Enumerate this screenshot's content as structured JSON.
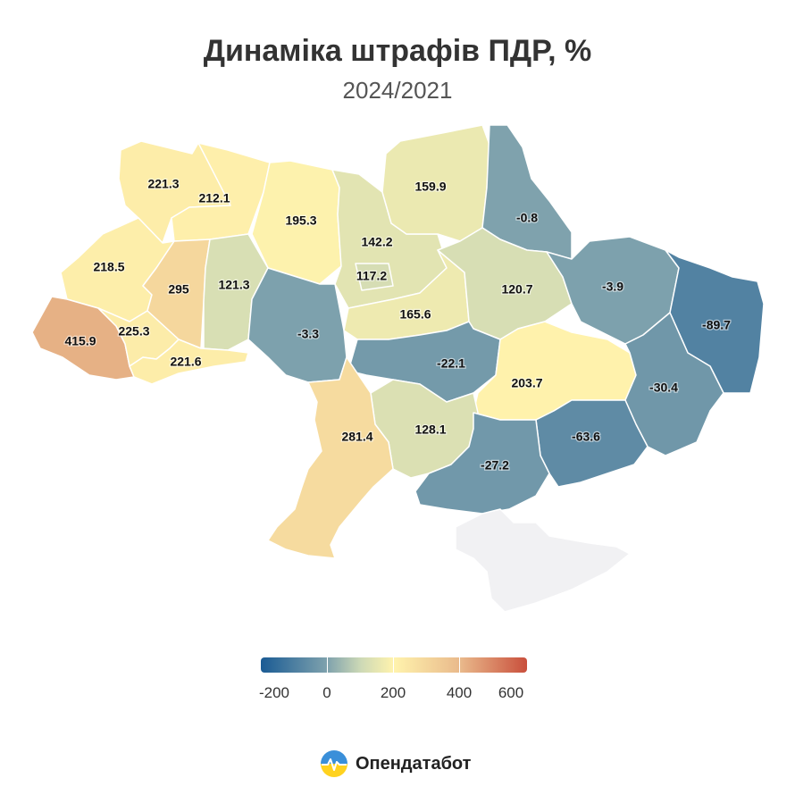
{
  "title": "Динаміка штрафів ПДР, %",
  "subtitle": "2024/2021",
  "regions": [
    {
      "id": "volyn",
      "value": "221.3"
    },
    {
      "id": "rivne",
      "value": "212.1"
    },
    {
      "id": "zhytomyr",
      "value": "195.3"
    },
    {
      "id": "kyiv-oblast",
      "value": "142.2"
    },
    {
      "id": "kyiv-city",
      "value": "117.2"
    },
    {
      "id": "chernihiv",
      "value": "159.9"
    },
    {
      "id": "sumy",
      "value": "-0.8"
    },
    {
      "id": "lviv",
      "value": "218.5"
    },
    {
      "id": "ternopil",
      "value": "295"
    },
    {
      "id": "khmelnytskyi",
      "value": "121.3"
    },
    {
      "id": "cherkasy",
      "value": "165.6"
    },
    {
      "id": "poltava",
      "value": "120.7"
    },
    {
      "id": "kharkiv",
      "value": "-3.9"
    },
    {
      "id": "luhansk",
      "value": "-89.7"
    },
    {
      "id": "zakarpattia",
      "value": "415.9"
    },
    {
      "id": "ivano-frankivsk",
      "value": "225.3"
    },
    {
      "id": "chernivtsi",
      "value": "221.6"
    },
    {
      "id": "vinnytsia",
      "value": "-3.3"
    },
    {
      "id": "kirovohrad",
      "value": "-22.1"
    },
    {
      "id": "dnipropetrovsk",
      "value": "203.7"
    },
    {
      "id": "donetsk",
      "value": "-30.4"
    },
    {
      "id": "zaporizhzhia",
      "value": "-63.6"
    },
    {
      "id": "mykolaiv",
      "value": "128.1"
    },
    {
      "id": "odesa",
      "value": "281.4"
    },
    {
      "id": "kherson",
      "value": "-27.2"
    },
    {
      "id": "crimea",
      "value": null
    }
  ],
  "colors": {
    "no_data": "#f1f1f3",
    "scale": [
      "#1a5b94",
      "#7fa2ad",
      "#cdd9b6",
      "#fff3ad",
      "#e9b98b",
      "#c94f3c"
    ]
  },
  "legend": {
    "ticks": [
      "-200",
      "0",
      "200",
      "400",
      "600"
    ],
    "min": -200,
    "max": 600
  },
  "brand": {
    "name": "Опендатабот"
  }
}
